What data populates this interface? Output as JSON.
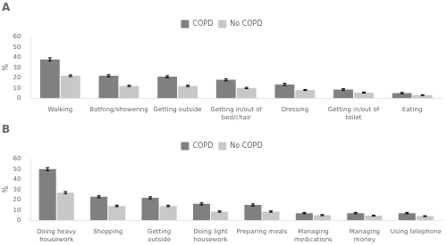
{
  "chart_data": [
    {
      "type": "bar",
      "title": "A",
      "categories": [
        "Walking",
        "Bathing/showering",
        "Getting outside",
        "Getting in/out of\nbed/chair",
        "Dressing",
        "Getting in/out of\ntoilet",
        "Eating"
      ],
      "series": [
        {
          "name": "COPD",
          "color": "#808080",
          "values": [
            38,
            22,
            21,
            18,
            13.5,
            8.5,
            5
          ],
          "errors": [
            1.5,
            1.0,
            1.0,
            1.0,
            1.0,
            0.8,
            0.6
          ]
        },
        {
          "name": "No COPD",
          "color": "#c8c8c8",
          "values": [
            22,
            12,
            12,
            10,
            8,
            5.5,
            3
          ],
          "errors": [
            0.8,
            0.6,
            0.6,
            0.6,
            0.5,
            0.5,
            0.4
          ]
        }
      ],
      "ylabel": "%",
      "ylim": [
        0,
        60
      ],
      "yticks": [
        0,
        10,
        20,
        30,
        40,
        50,
        60
      ],
      "grid": false,
      "legend": "top"
    },
    {
      "type": "bar",
      "title": "B",
      "categories": [
        "Doing heavy\nhousework",
        "Shopping",
        "Getting\noutside",
        "Doing light\nhousework",
        "Preparing meals",
        "Managing\nmedications",
        "Managing\nmoney",
        "Using telephone"
      ],
      "series": [
        {
          "name": "COPD",
          "color": "#808080",
          "values": [
            50,
            23,
            22,
            16,
            15,
            7,
            7,
            7
          ],
          "errors": [
            1.5,
            1.0,
            1.0,
            1.0,
            1.0,
            0.7,
            0.7,
            0.7
          ]
        },
        {
          "name": "No COPD",
          "color": "#c8c8c8",
          "values": [
            27,
            14,
            14,
            8.5,
            8.5,
            5,
            4.5,
            4
          ],
          "errors": [
            1.0,
            0.7,
            0.7,
            0.6,
            0.6,
            0.5,
            0.5,
            0.4
          ]
        }
      ],
      "ylabel": "%",
      "ylim": [
        0,
        60
      ],
      "yticks": [
        0,
        10,
        20,
        30,
        40,
        50,
        60
      ],
      "grid": false,
      "legend": "top"
    }
  ]
}
